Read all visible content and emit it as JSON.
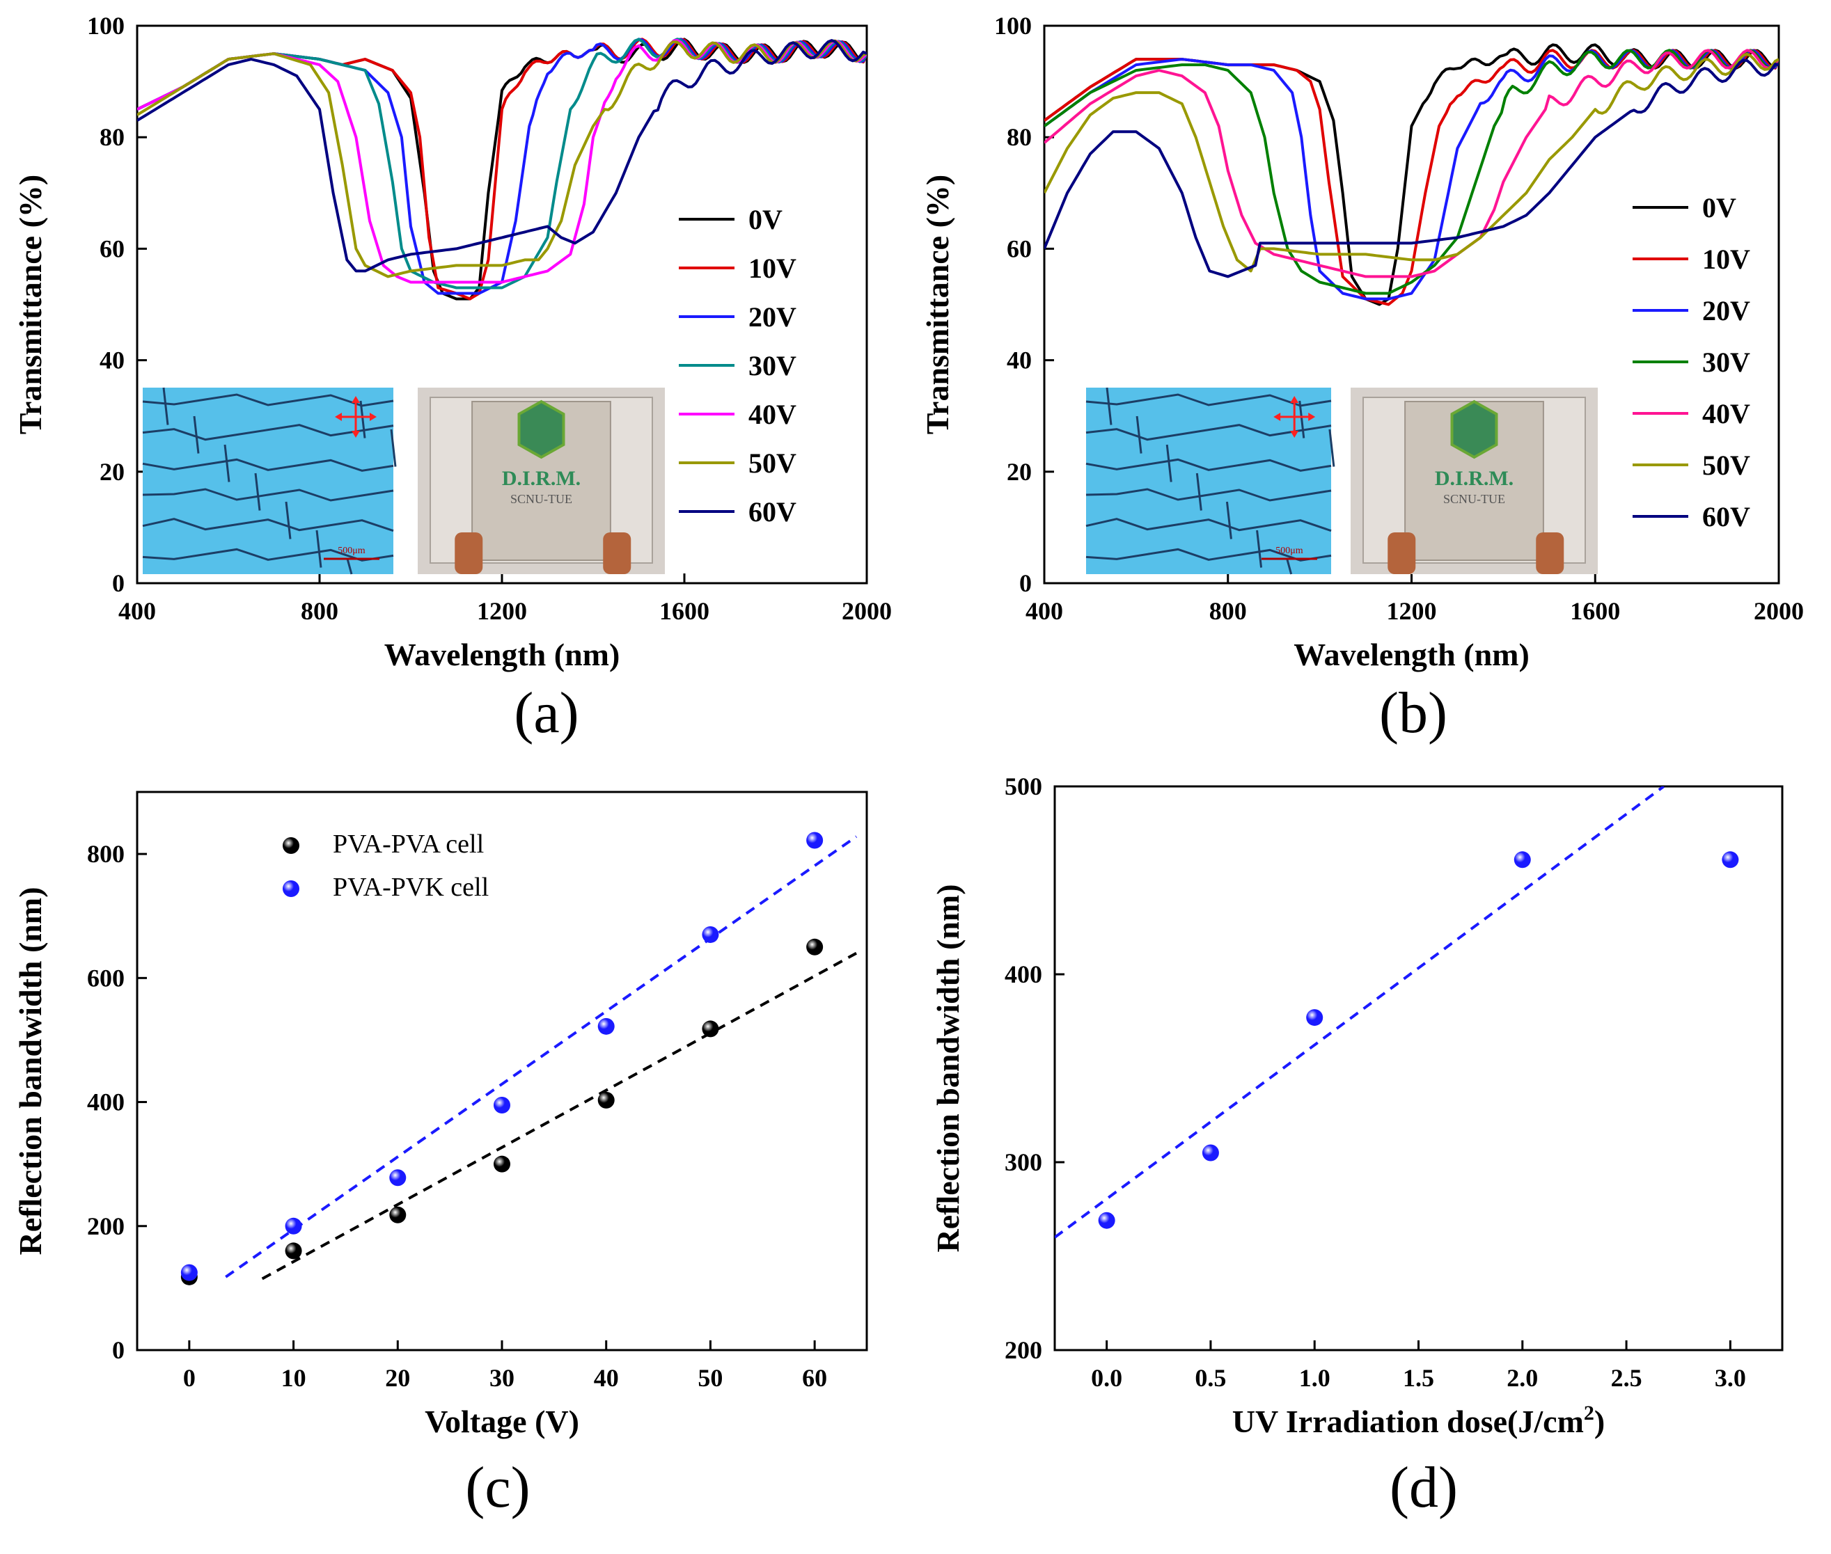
{
  "figure_labels": {
    "a": "(a)",
    "b": "(b)",
    "c": "(c)",
    "d": "(d)"
  },
  "chart_data": [
    {
      "id": "a",
      "type": "line",
      "title": "",
      "xlabel": "Wavelength (nm)",
      "ylabel": "Transmittance (%)",
      "xlim": [
        400,
        2000
      ],
      "ylim": [
        0,
        100
      ],
      "xticks": [
        400,
        800,
        1200,
        1600,
        2000
      ],
      "yticks": [
        0,
        20,
        40,
        60,
        80,
        100
      ],
      "legend_position": "right",
      "series": [
        {
          "name": "0V",
          "color": "#000000",
          "x": [
            400,
            500,
            600,
            700,
            800,
            850,
            900,
            960,
            1000,
            1030,
            1050,
            1070,
            1100,
            1130,
            1150,
            1170,
            1200,
            1250,
            1300,
            1350,
            1400,
            1500,
            1600,
            1700,
            1800,
            1900,
            2000
          ],
          "y": [
            85,
            89,
            94,
            95,
            94,
            93,
            94,
            92,
            87,
            70,
            56,
            52,
            51,
            51,
            53,
            70,
            88,
            93,
            94,
            95,
            95,
            95,
            96,
            95,
            95,
            96,
            95
          ]
        },
        {
          "name": "10V",
          "color": "#e00000",
          "x": [
            400,
            500,
            600,
            700,
            800,
            850,
            900,
            960,
            1000,
            1020,
            1040,
            1060,
            1100,
            1130,
            1150,
            1170,
            1200,
            1250,
            1300,
            1350,
            1400,
            1500,
            1600,
            1700,
            1800,
            1900,
            2000
          ],
          "y": [
            85,
            89,
            94,
            95,
            94,
            93,
            94,
            92,
            88,
            80,
            62,
            53,
            52,
            51,
            52,
            58,
            85,
            92,
            94,
            95,
            95,
            96,
            96,
            95,
            95,
            96,
            95
          ]
        },
        {
          "name": "20V",
          "color": "#1a1aff",
          "x": [
            400,
            500,
            600,
            700,
            800,
            850,
            900,
            950,
            980,
            1000,
            1030,
            1060,
            1100,
            1150,
            1200,
            1230,
            1260,
            1300,
            1350,
            1400,
            1500,
            1600,
            1700,
            1800,
            1900,
            2000
          ],
          "y": [
            85,
            89,
            94,
            95,
            94,
            93,
            92,
            88,
            80,
            64,
            54,
            52,
            52,
            52,
            54,
            65,
            82,
            92,
            95,
            95,
            96,
            96,
            95,
            95,
            96,
            95
          ]
        },
        {
          "name": "30V",
          "color": "#008b8b",
          "x": [
            400,
            500,
            600,
            700,
            800,
            850,
            900,
            930,
            960,
            980,
            1000,
            1050,
            1100,
            1150,
            1200,
            1250,
            1300,
            1320,
            1350,
            1400,
            1450,
            1500,
            1600,
            1700,
            1800,
            1900,
            2000
          ],
          "y": [
            85,
            89,
            94,
            95,
            94,
            93,
            92,
            86,
            72,
            60,
            56,
            54,
            53,
            53,
            53,
            55,
            62,
            72,
            85,
            93,
            95,
            96,
            96,
            95,
            95,
            96,
            95
          ]
        },
        {
          "name": "40V",
          "color": "#ff00ff",
          "x": [
            400,
            500,
            600,
            700,
            800,
            840,
            880,
            910,
            940,
            970,
            1000,
            1050,
            1100,
            1150,
            1200,
            1250,
            1300,
            1350,
            1380,
            1400,
            1450,
            1500,
            1600,
            1700,
            1800,
            1900,
            2000
          ],
          "y": [
            85,
            89,
            94,
            95,
            93,
            90,
            80,
            65,
            57,
            55,
            54,
            54,
            54,
            54,
            54,
            55,
            56,
            59,
            68,
            80,
            92,
            95,
            96,
            95,
            95,
            96,
            95
          ]
        },
        {
          "name": "50V",
          "color": "#999900",
          "x": [
            400,
            500,
            600,
            700,
            780,
            820,
            850,
            880,
            900,
            950,
            1000,
            1100,
            1200,
            1250,
            1280,
            1300,
            1330,
            1360,
            1400,
            1450,
            1500,
            1550,
            1600,
            1700,
            1800,
            1900,
            2000
          ],
          "y": [
            84,
            89,
            94,
            95,
            93,
            88,
            75,
            60,
            57,
            55,
            56,
            57,
            57,
            58,
            58,
            60,
            65,
            75,
            82,
            88,
            92,
            95,
            96,
            95,
            95,
            96,
            95
          ]
        },
        {
          "name": "60V",
          "color": "#000080",
          "x": [
            400,
            500,
            600,
            650,
            700,
            750,
            800,
            830,
            860,
            880,
            900,
            950,
            1000,
            1100,
            1200,
            1250,
            1300,
            1330,
            1360,
            1400,
            1450,
            1500,
            1550,
            1600,
            1650,
            1700,
            1800,
            1900,
            2000
          ],
          "y": [
            83,
            88,
            93,
            94,
            93,
            91,
            85,
            70,
            58,
            56,
            56,
            58,
            59,
            60,
            62,
            63,
            64,
            62,
            61,
            63,
            70,
            80,
            87,
            90,
            92,
            93,
            95,
            96,
            95
          ]
        }
      ]
    },
    {
      "id": "b",
      "type": "line",
      "title": "",
      "xlabel": "Wavelength (nm)",
      "ylabel": "Transmittance (%)",
      "xlim": [
        400,
        2000
      ],
      "ylim": [
        0,
        100
      ],
      "xticks": [
        400,
        800,
        1200,
        1600,
        2000
      ],
      "yticks": [
        0,
        20,
        40,
        60,
        80,
        100
      ],
      "legend_position": "right",
      "series": [
        {
          "name": "0V",
          "color": "#000000",
          "x": [
            400,
            500,
            600,
            700,
            800,
            900,
            950,
            1000,
            1030,
            1050,
            1070,
            1100,
            1130,
            1150,
            1170,
            1200,
            1250,
            1300,
            1400,
            1500,
            1600,
            1700,
            1800,
            1900,
            2000
          ],
          "y": [
            83,
            89,
            94,
            94,
            93,
            93,
            92,
            90,
            83,
            70,
            55,
            51,
            50,
            51,
            60,
            82,
            90,
            93,
            94,
            95,
            95,
            94,
            94,
            94,
            94
          ]
        },
        {
          "name": "10V",
          "color": "#e00000",
          "x": [
            400,
            500,
            600,
            700,
            800,
            900,
            950,
            980,
            1000,
            1020,
            1050,
            1100,
            1150,
            1180,
            1200,
            1230,
            1260,
            1300,
            1400,
            1500,
            1600,
            1700,
            1800,
            1900,
            2000
          ],
          "y": [
            83,
            89,
            94,
            94,
            93,
            93,
            92,
            90,
            85,
            72,
            55,
            51,
            50,
            52,
            56,
            70,
            82,
            88,
            92,
            94,
            94,
            94,
            94,
            94,
            94
          ]
        },
        {
          "name": "20V",
          "color": "#1a1aff",
          "x": [
            400,
            500,
            600,
            700,
            800,
            850,
            900,
            940,
            960,
            980,
            1000,
            1050,
            1100,
            1150,
            1200,
            1250,
            1280,
            1300,
            1350,
            1400,
            1500,
            1600,
            1700,
            1800,
            1900,
            2000
          ],
          "y": [
            82,
            88,
            93,
            94,
            93,
            93,
            92,
            88,
            80,
            66,
            56,
            52,
            51,
            51,
            52,
            58,
            70,
            78,
            86,
            90,
            93,
            94,
            94,
            94,
            94,
            94
          ]
        },
        {
          "name": "30V",
          "color": "#008000",
          "x": [
            400,
            500,
            600,
            700,
            750,
            800,
            850,
            880,
            900,
            930,
            960,
            1000,
            1050,
            1100,
            1150,
            1200,
            1250,
            1300,
            1340,
            1380,
            1420,
            1500,
            1600,
            1700,
            1800,
            1900,
            2000
          ],
          "y": [
            82,
            88,
            92,
            93,
            93,
            92,
            88,
            80,
            70,
            60,
            56,
            54,
            53,
            52,
            52,
            54,
            57,
            62,
            72,
            82,
            88,
            92,
            94,
            94,
            94,
            94,
            94
          ]
        },
        {
          "name": "40V",
          "color": "#ff1493",
          "x": [
            400,
            500,
            600,
            650,
            700,
            750,
            780,
            800,
            830,
            860,
            900,
            950,
            1000,
            1050,
            1100,
            1150,
            1200,
            1250,
            1300,
            1350,
            1380,
            1400,
            1450,
            1500,
            1600,
            1700,
            1800,
            1900,
            2000
          ],
          "y": [
            79,
            86,
            91,
            92,
            91,
            88,
            82,
            74,
            66,
            61,
            59,
            58,
            57,
            56,
            55,
            55,
            55,
            56,
            59,
            62,
            67,
            72,
            80,
            86,
            90,
            93,
            94,
            94,
            94
          ]
        },
        {
          "name": "50V",
          "color": "#999900",
          "x": [
            400,
            450,
            500,
            550,
            600,
            650,
            700,
            730,
            760,
            790,
            820,
            850,
            870,
            900,
            1000,
            1100,
            1200,
            1250,
            1300,
            1350,
            1400,
            1450,
            1500,
            1550,
            1600,
            1700,
            1800,
            1900,
            2000
          ],
          "y": [
            70,
            78,
            84,
            87,
            88,
            88,
            86,
            80,
            72,
            64,
            58,
            56,
            60,
            60,
            59,
            59,
            58,
            58,
            59,
            62,
            66,
            70,
            76,
            80,
            85,
            90,
            92,
            93,
            94
          ]
        },
        {
          "name": "60V",
          "color": "#000080",
          "x": [
            400,
            450,
            500,
            550,
            600,
            650,
            700,
            730,
            760,
            800,
            830,
            860,
            870,
            900,
            1000,
            1100,
            1200,
            1300,
            1350,
            1400,
            1450,
            1500,
            1550,
            1600,
            1700,
            1800,
            1900,
            2000
          ],
          "y": [
            60,
            70,
            77,
            81,
            81,
            78,
            70,
            62,
            56,
            55,
            56,
            57,
            61,
            61,
            61,
            61,
            61,
            62,
            63,
            64,
            66,
            70,
            75,
            80,
            86,
            90,
            92,
            93
          ]
        }
      ]
    },
    {
      "id": "c",
      "type": "scatter",
      "title": "",
      "xlabel": "Voltage (V)",
      "ylabel": "Reflection bandwidth (nm)",
      "xlim": [
        -5,
        65
      ],
      "ylim": [
        0,
        900
      ],
      "xticks": [
        0,
        10,
        20,
        30,
        40,
        50,
        60
      ],
      "yticks": [
        0,
        200,
        400,
        600,
        800
      ],
      "legend_position": "top-left",
      "series": [
        {
          "name": "PVA-PVA cell",
          "color": "#000000",
          "x": [
            0,
            10,
            20,
            30,
            40,
            50,
            60
          ],
          "y": [
            118,
            160,
            218,
            300,
            403,
            518,
            650
          ],
          "fit": {
            "x": [
              7,
              64
            ],
            "y": [
              115,
              640
            ]
          }
        },
        {
          "name": "PVA-PVK cell",
          "color": "#1a1aff",
          "x": [
            0,
            10,
            20,
            30,
            40,
            50,
            60
          ],
          "y": [
            125,
            200,
            278,
            395,
            522,
            670,
            822
          ],
          "fit": {
            "x": [
              3.5,
              64
            ],
            "y": [
              118,
              828
            ]
          }
        }
      ]
    },
    {
      "id": "d",
      "type": "scatter",
      "title": "",
      "xlabel": "UV Irradiation dose(J/cm",
      "xlabel_sup": "2",
      "xlabel_end": ")",
      "ylabel": "Reflection bandwidth (nm)",
      "xlim": [
        -0.25,
        3.25
      ],
      "ylim": [
        200,
        500
      ],
      "xticks": [
        0.0,
        0.5,
        1.0,
        1.5,
        2.0,
        2.5,
        3.0
      ],
      "xtick_labels": [
        "0.0",
        "0.5",
        "1.0",
        "1.5",
        "2.0",
        "2.5",
        "3.0"
      ],
      "yticks": [
        200,
        300,
        400,
        500
      ],
      "series": [
        {
          "name": "PVA-PVK cell",
          "color": "#1a1aff",
          "x": [
            0.0,
            0.5,
            1.0,
            2.0,
            3.0
          ],
          "y": [
            269,
            305,
            377,
            461,
            461
          ],
          "fit": {
            "x": [
              -0.25,
              2.68
            ],
            "y": [
              260,
              500
            ]
          }
        }
      ]
    }
  ],
  "insets": {
    "a": {
      "scale_bar": "500μm",
      "logo": "D.I.R.M.",
      "logo_sub": "SCNU-TUE"
    },
    "b": {
      "scale_bar": "500μm",
      "logo": "D.I.R.M.",
      "logo_sub": "SCNU-TUE"
    }
  }
}
